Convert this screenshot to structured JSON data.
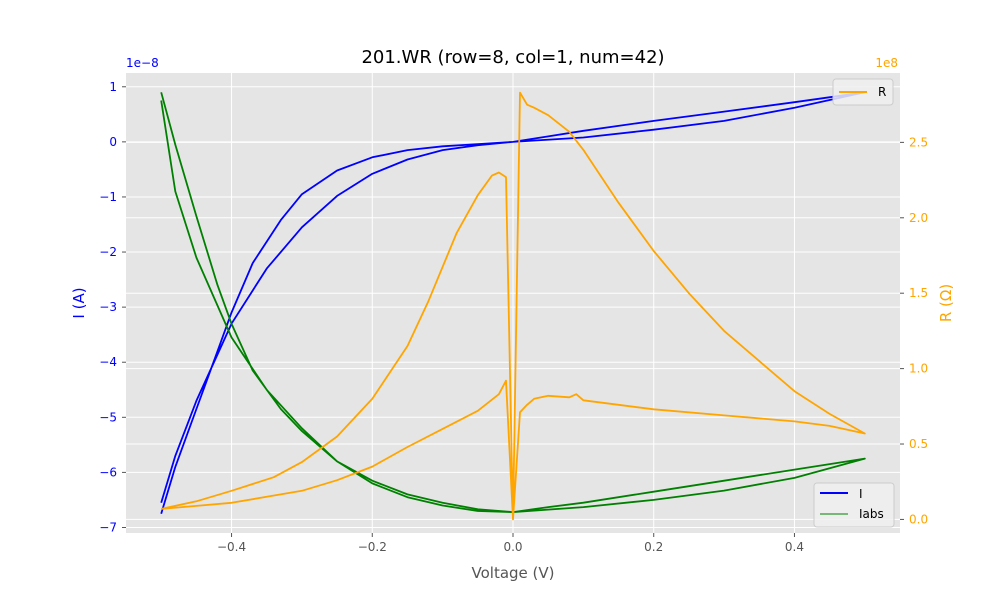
{
  "chart_data": {
    "type": "line",
    "title": "201.WR (row=8, col=1, num=42)",
    "xlabel": "Voltage (V)",
    "ylabel_left": "I (A)",
    "ylabel_right": "R (Ω)",
    "left_offset_label": "1e−8",
    "right_offset_label": "1e8",
    "xlim": [
      -0.55,
      0.55
    ],
    "ylim_left": [
      -7.1,
      1.25
    ],
    "ylim_right": [
      -0.09,
      2.96
    ],
    "x_ticks": [
      -0.4,
      -0.2,
      0.0,
      0.2,
      0.4
    ],
    "x_tick_labels": [
      "−0.4",
      "−0.2",
      "0.0",
      "0.2",
      "0.4"
    ],
    "y_left_ticks": [
      1,
      0,
      -1,
      -2,
      -3,
      -4,
      -5,
      -6,
      -7
    ],
    "y_left_tick_labels": [
      "1",
      "0",
      "−1",
      "−2",
      "−3",
      "−4",
      "−5",
      "−6",
      "−7"
    ],
    "y_right_ticks": [
      2.5,
      2.0,
      1.5,
      1.0,
      0.5,
      0.0
    ],
    "y_right_tick_labels": [
      "2.5",
      "2.0",
      "1.5",
      "1.0",
      "0.5",
      "0.0"
    ],
    "grid": true,
    "legend_right": {
      "placement": "top-right",
      "entries": [
        {
          "name": "R",
          "color": "#FFA500"
        }
      ]
    },
    "legend_left": {
      "placement": "bottom-right",
      "entries": [
        {
          "name": "I",
          "color": "#0000FF"
        },
        {
          "name": "Iabs",
          "color": "#008000"
        }
      ]
    },
    "series": [
      {
        "name": "I",
        "axis": "left",
        "color": "#0000FF",
        "points": [
          [
            -0.5,
            -6.75
          ],
          [
            -0.48,
            -5.9
          ],
          [
            -0.45,
            -4.85
          ],
          [
            -0.42,
            -3.8
          ],
          [
            -0.4,
            -3.1
          ],
          [
            -0.37,
            -2.2
          ],
          [
            -0.33,
            -1.42
          ],
          [
            -0.3,
            -0.95
          ],
          [
            -0.25,
            -0.52
          ],
          [
            -0.2,
            -0.28
          ],
          [
            -0.15,
            -0.15
          ],
          [
            -0.1,
            -0.08
          ],
          [
            -0.05,
            -0.04
          ],
          [
            0,
            0
          ],
          [
            0.1,
            0.08
          ],
          [
            0.2,
            0.22
          ],
          [
            0.3,
            0.38
          ],
          [
            0.4,
            0.62
          ],
          [
            0.5,
            0.9
          ],
          [
            0.4,
            0.72
          ],
          [
            0.3,
            0.55
          ],
          [
            0.2,
            0.38
          ],
          [
            0.1,
            0.2
          ],
          [
            0.05,
            0.1
          ],
          [
            0,
            0
          ],
          [
            -0.05,
            -0.06
          ],
          [
            -0.1,
            -0.15
          ],
          [
            -0.15,
            -0.32
          ],
          [
            -0.2,
            -0.58
          ],
          [
            -0.25,
            -0.98
          ],
          [
            -0.3,
            -1.55
          ],
          [
            -0.35,
            -2.3
          ],
          [
            -0.4,
            -3.3
          ],
          [
            -0.45,
            -4.7
          ],
          [
            -0.48,
            -5.7
          ],
          [
            -0.5,
            -6.55
          ]
        ]
      },
      {
        "name": "Iabs",
        "axis": "left",
        "color": "#008000",
        "points": [
          [
            -0.5,
            0.9
          ],
          [
            -0.48,
            -0.05
          ],
          [
            -0.45,
            -1.35
          ],
          [
            -0.42,
            -2.6
          ],
          [
            -0.4,
            -3.3
          ],
          [
            -0.37,
            -4.15
          ],
          [
            -0.33,
            -4.85
          ],
          [
            -0.3,
            -5.25
          ],
          [
            -0.25,
            -5.8
          ],
          [
            -0.2,
            -6.15
          ],
          [
            -0.15,
            -6.4
          ],
          [
            -0.1,
            -6.55
          ],
          [
            -0.05,
            -6.67
          ],
          [
            0,
            -6.72
          ],
          [
            0.1,
            -6.63
          ],
          [
            0.2,
            -6.5
          ],
          [
            0.3,
            -6.33
          ],
          [
            0.4,
            -6.1
          ],
          [
            0.5,
            -5.75
          ],
          [
            0.4,
            -5.95
          ],
          [
            0.3,
            -6.15
          ],
          [
            0.2,
            -6.35
          ],
          [
            0.1,
            -6.55
          ],
          [
            0.05,
            -6.63
          ],
          [
            0,
            -6.72
          ],
          [
            -0.05,
            -6.7
          ],
          [
            -0.1,
            -6.6
          ],
          [
            -0.15,
            -6.45
          ],
          [
            -0.2,
            -6.2
          ],
          [
            -0.25,
            -5.8
          ],
          [
            -0.3,
            -5.2
          ],
          [
            -0.35,
            -4.5
          ],
          [
            -0.4,
            -3.55
          ],
          [
            -0.45,
            -2.1
          ],
          [
            -0.48,
            -0.9
          ],
          [
            -0.5,
            0.75
          ]
        ]
      },
      {
        "name": "R",
        "axis": "right",
        "color": "#FFA500",
        "points": [
          [
            -0.5,
            0.07
          ],
          [
            -0.45,
            0.12
          ],
          [
            -0.4,
            0.19
          ],
          [
            -0.34,
            0.28
          ],
          [
            -0.3,
            0.38
          ],
          [
            -0.25,
            0.55
          ],
          [
            -0.2,
            0.8
          ],
          [
            -0.15,
            1.15
          ],
          [
            -0.12,
            1.45
          ],
          [
            -0.08,
            1.9
          ],
          [
            -0.05,
            2.15
          ],
          [
            -0.03,
            2.28
          ],
          [
            -0.02,
            2.3
          ],
          [
            -0.01,
            2.27
          ],
          [
            0,
            0
          ],
          [
            0.01,
            2.83
          ],
          [
            0.02,
            2.75
          ],
          [
            0.03,
            2.73
          ],
          [
            0.05,
            2.68
          ],
          [
            0.08,
            2.57
          ],
          [
            0.1,
            2.45
          ],
          [
            0.15,
            2.1
          ],
          [
            0.2,
            1.78
          ],
          [
            0.25,
            1.5
          ],
          [
            0.3,
            1.25
          ],
          [
            0.35,
            1.05
          ],
          [
            0.4,
            0.85
          ],
          [
            0.45,
            0.7
          ],
          [
            0.5,
            0.57
          ],
          [
            0.45,
            0.62
          ],
          [
            0.4,
            0.65
          ],
          [
            0.3,
            0.69
          ],
          [
            0.2,
            0.73
          ],
          [
            0.15,
            0.76
          ],
          [
            0.1,
            0.79
          ],
          [
            0.09,
            0.83
          ],
          [
            0.08,
            0.81
          ],
          [
            0.05,
            0.82
          ],
          [
            0.03,
            0.8
          ],
          [
            0.02,
            0.76
          ],
          [
            0.01,
            0.71
          ],
          [
            0,
            0
          ],
          [
            -0.01,
            0.92
          ],
          [
            -0.02,
            0.83
          ],
          [
            -0.05,
            0.72
          ],
          [
            -0.1,
            0.6
          ],
          [
            -0.15,
            0.48
          ],
          [
            -0.2,
            0.35
          ],
          [
            -0.25,
            0.26
          ],
          [
            -0.3,
            0.19
          ],
          [
            -0.35,
            0.15
          ],
          [
            -0.4,
            0.11
          ],
          [
            -0.45,
            0.09
          ],
          [
            -0.5,
            0.07
          ]
        ]
      }
    ]
  }
}
